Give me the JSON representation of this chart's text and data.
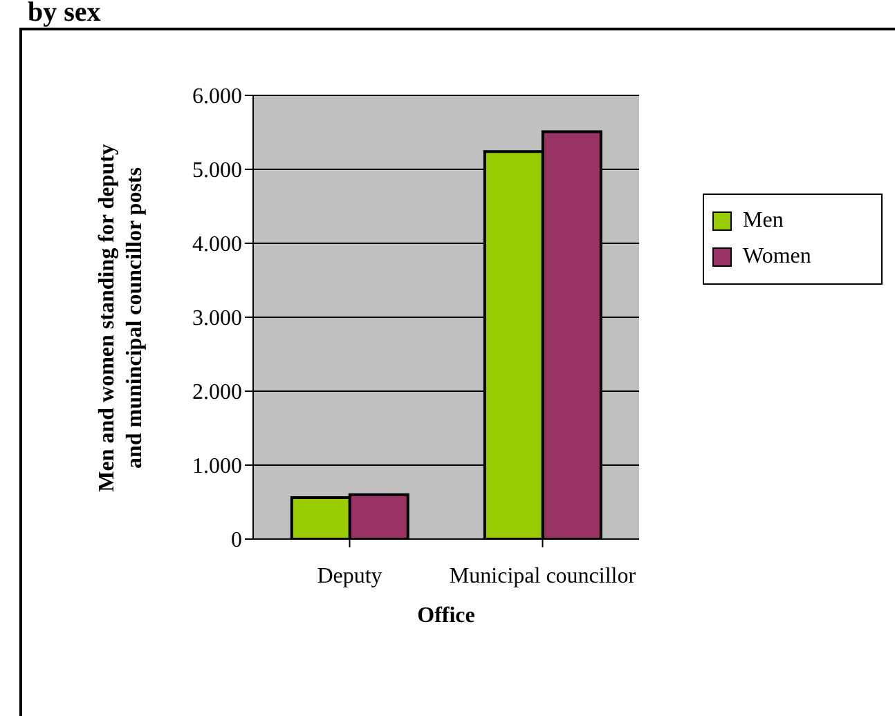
{
  "chart_data": {
    "type": "bar",
    "title": "by sex",
    "xlabel": "Office",
    "ylabel": "Men and women standing for deputy and munincipal councillor posts",
    "categories": [
      "Deputy",
      "Municipal councillor"
    ],
    "series": [
      {
        "name": "Men",
        "color": "#99cc00",
        "values": [
          560,
          5240
        ]
      },
      {
        "name": "Women",
        "color": "#993366",
        "values": [
          600,
          5510
        ]
      }
    ],
    "ylim": [
      0,
      6000
    ],
    "yticks": [
      0,
      {
        "value": 1000,
        "label": "1.000"
      },
      {
        "value": 2000,
        "label": "2.000"
      },
      {
        "value": 3000,
        "label": "3.000"
      },
      {
        "value": 4000,
        "label": "4.000"
      },
      {
        "value": 5000,
        "label": "5.000"
      },
      {
        "value": 6000,
        "label": "6.000"
      }
    ],
    "grid": "y",
    "legend": "right"
  }
}
